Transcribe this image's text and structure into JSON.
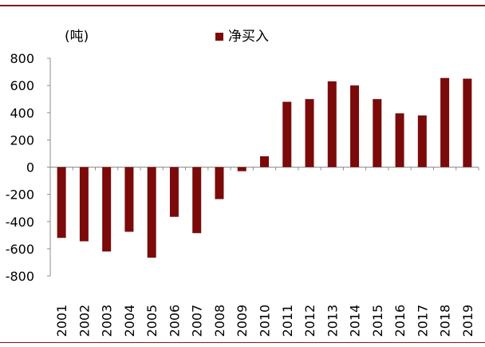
{
  "unit_label": "(吨)",
  "accent_color": "#7b0a0a",
  "rule_color": "#7b1c1c",
  "chart_data": {
    "type": "bar",
    "categories": [
      "2001",
      "2002",
      "2003",
      "2004",
      "2005",
      "2006",
      "2007",
      "2008",
      "2009",
      "2010",
      "2011",
      "2012",
      "2013",
      "2014",
      "2015",
      "2016",
      "2017",
      "2018",
      "2019"
    ],
    "series": [
      {
        "name": "净买入",
        "color": "#7b0a0a",
        "values": [
          -520,
          -545,
          -620,
          -475,
          -665,
          -365,
          -485,
          -235,
          -30,
          80,
          480,
          500,
          630,
          600,
          500,
          395,
          380,
          655,
          650
        ]
      }
    ],
    "ylim": [
      -800,
      800
    ],
    "yticks": [
      -800,
      -600,
      -400,
      -200,
      0,
      200,
      400,
      600,
      800
    ],
    "grid": false,
    "legend": "top"
  }
}
